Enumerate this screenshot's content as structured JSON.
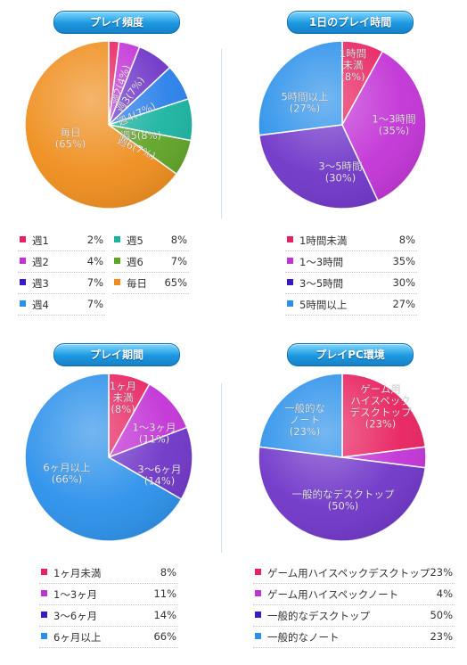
{
  "panels": [
    {
      "title": "プレイ頻度",
      "chart_data": {
        "type": "pie",
        "title": "プレイ頻度",
        "slices": [
          {
            "name": "週1",
            "value": 2,
            "pct": "2%",
            "label_lines": [],
            "color": "#e8215f"
          },
          {
            "name": "週2",
            "value": 4,
            "pct": "4%",
            "label_lines": [
              "週2(4%)"
            ],
            "color": "#c233d6"
          },
          {
            "name": "週3",
            "value": 7,
            "pct": "7%",
            "label_lines": [
              "週3(7%)"
            ],
            "color": "#6f35c8"
          },
          {
            "name": "週4",
            "value": 7,
            "pct": "7%",
            "label_lines": [
              "週4(7%)"
            ],
            "color": "#2a80ea"
          },
          {
            "name": "週5",
            "value": 8,
            "pct": "8%",
            "label_lines": [
              "週5(8%)"
            ],
            "color": "#1ab3a0"
          },
          {
            "name": "週6",
            "value": 7,
            "pct": "7%",
            "label_lines": [
              "週6(7%)"
            ],
            "color": "#5fa425"
          },
          {
            "name": "毎日",
            "value": 65,
            "pct": "65%",
            "label_lines": [
              "毎日",
              "(65%)"
            ],
            "color": "#ef8d1c"
          }
        ]
      },
      "legend": [
        {
          "name": "週1",
          "pct": "2%",
          "color": "#e8215f"
        },
        {
          "name": "週5",
          "pct": "8%",
          "color": "#1ab3a0"
        },
        {
          "name": "週2",
          "pct": "4%",
          "color": "#c233d6"
        },
        {
          "name": "週6",
          "pct": "7%",
          "color": "#5fa425"
        },
        {
          "name": "週3",
          "pct": "7%",
          "color": "#3a17c8"
        },
        {
          "name": "毎日",
          "pct": "65%",
          "color": "#ef8d1c"
        },
        {
          "name": "週4",
          "pct": "7%",
          "color": "#2a90ea"
        }
      ]
    },
    {
      "title": "1日のプレイ時間",
      "chart_data": {
        "type": "pie",
        "title": "1日のプレイ時間",
        "slices": [
          {
            "name": "1時間未満",
            "value": 8,
            "pct": "8%",
            "label_lines": [
              "1時間",
              "未満",
              "(8%)"
            ],
            "color": "#e8215f"
          },
          {
            "name": "1～3時間",
            "value": 35,
            "pct": "35%",
            "label_lines": [
              "1～3時間",
              "(35%)"
            ],
            "color": "#c233d6"
          },
          {
            "name": "3～5時間",
            "value": 30,
            "pct": "30%",
            "label_lines": [
              "3～5時間",
              "(30%)"
            ],
            "color": "#6f35c8"
          },
          {
            "name": "5時間以上",
            "value": 27,
            "pct": "27%",
            "label_lines": [
              "5時間以上",
              "(27%)"
            ],
            "color": "#2a90ea"
          }
        ]
      },
      "legend": [
        {
          "name": "1時間未満",
          "pct": "8%",
          "color": "#e8215f"
        },
        {
          "name": "1～3時間",
          "pct": "35%",
          "color": "#c233d6"
        },
        {
          "name": "3～5時間",
          "pct": "30%",
          "color": "#3a17c8"
        },
        {
          "name": "5時間以上",
          "pct": "27%",
          "color": "#2a90ea"
        }
      ]
    },
    {
      "title": "プレイ期間",
      "chart_data": {
        "type": "pie",
        "title": "プレイ期間",
        "slices": [
          {
            "name": "1ヶ月未満",
            "value": 8,
            "pct": "8%",
            "label_lines": [
              "1ヶ月",
              "未満",
              "(8%)"
            ],
            "color": "#e8215f"
          },
          {
            "name": "1～3ヶ月",
            "value": 11,
            "pct": "11%",
            "label_lines": [
              "1～3ヶ月",
              "(11%)"
            ],
            "color": "#c233d6"
          },
          {
            "name": "3～6ヶ月",
            "value": 14,
            "pct": "14%",
            "label_lines": [
              "3～6ヶ月",
              "(14%)"
            ],
            "color": "#6f35c8"
          },
          {
            "name": "6ヶ月以上",
            "value": 66,
            "pct": "66%",
            "label_lines": [
              "6ヶ月以上",
              "(66%)"
            ],
            "color": "#2a90ea"
          }
        ]
      },
      "legend": [
        {
          "name": "1ヶ月未満",
          "pct": "8%",
          "color": "#e8215f"
        },
        {
          "name": "1～3ヶ月",
          "pct": "11%",
          "color": "#c233d6"
        },
        {
          "name": "3～6ヶ月",
          "pct": "14%",
          "color": "#3a17c8"
        },
        {
          "name": "6ヶ月以上",
          "pct": "66%",
          "color": "#2a90ea"
        }
      ]
    },
    {
      "title": "プレイPC環境",
      "chart_data": {
        "type": "pie",
        "title": "プレイPC環境",
        "slices": [
          {
            "name": "ゲーム用ハイスペックデスクトップ",
            "value": 23,
            "pct": "23%",
            "label_lines": [
              "ゲーム用",
              "ハイスペック",
              "デスクトップ",
              "(23%)"
            ],
            "color": "#e8215f"
          },
          {
            "name": "ゲーム用ハイスペックノート",
            "value": 4,
            "pct": "4%",
            "label_lines": [],
            "color": "#c233d6"
          },
          {
            "name": "一般的なデスクトップ",
            "value": 50,
            "pct": "50%",
            "label_lines": [
              "一般的なデスクトップ",
              "(50%)"
            ],
            "color": "#6f35c8"
          },
          {
            "name": "一般的なノート",
            "value": 23,
            "pct": "23%",
            "label_lines": [
              "一般的な",
              "ノート",
              "(23%)"
            ],
            "color": "#2a90ea"
          }
        ]
      },
      "legend": [
        {
          "name": "ゲーム用ハイスペックデスクトップ",
          "pct": "23%",
          "color": "#e8215f"
        },
        {
          "name": "ゲーム用ハイスペックノート",
          "pct": "4%",
          "color": "#c233d6"
        },
        {
          "name": "一般的なデスクトップ",
          "pct": "50%",
          "color": "#3a17c8"
        },
        {
          "name": "一般的なノート",
          "pct": "23%",
          "color": "#2a90ea"
        }
      ]
    }
  ]
}
